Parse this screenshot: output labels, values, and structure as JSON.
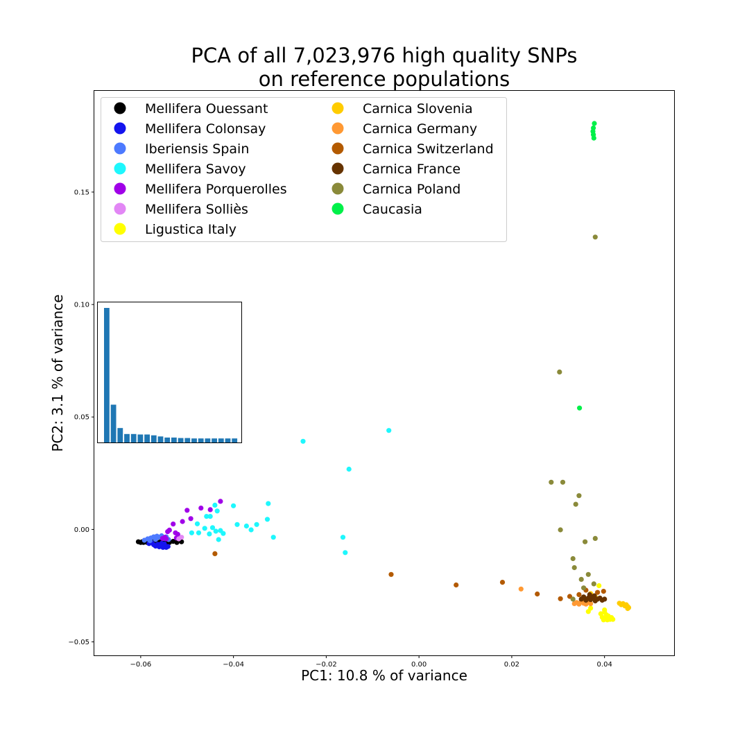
{
  "chart_data": {
    "type": "scatter",
    "title": "PCA of all 7,023,976 high quality SNPs",
    "subtitle": "on reference populations",
    "xlabel": "PC1: 10.8 % of variance",
    "ylabel": "PC2: 3.1 % of variance",
    "xlim": [
      -0.07,
      0.055
    ],
    "ylim": [
      -0.056,
      0.195
    ],
    "x_ticks": [
      -0.06,
      -0.04,
      -0.02,
      0.0,
      0.02,
      0.04
    ],
    "x_tick_labels": [
      "−0.06",
      "−0.04",
      "−0.02",
      "0.00",
      "0.02",
      "0.04"
    ],
    "y_ticks": [
      -0.05,
      0.0,
      0.05,
      0.1,
      0.15
    ],
    "y_tick_labels": [
      "−0.05",
      "0.00",
      "0.05",
      "0.10",
      "0.15"
    ],
    "grid": false,
    "legend_position": "top-left",
    "legend_columns": 2,
    "series": [
      {
        "name": "Mellifera Ouessant",
        "color": "#000000",
        "points": [
          [
            -0.0605,
            -0.0055
          ],
          [
            -0.06,
            -0.0058
          ],
          [
            -0.0597,
            -0.0055
          ],
          [
            -0.0594,
            -0.0058
          ],
          [
            -0.059,
            -0.0055
          ],
          [
            -0.0586,
            -0.0058
          ],
          [
            -0.0582,
            -0.0056
          ],
          [
            -0.0578,
            -0.0058
          ],
          [
            -0.0573,
            -0.0055
          ],
          [
            -0.0568,
            -0.0057
          ],
          [
            -0.0563,
            -0.0058
          ],
          [
            -0.0558,
            -0.0055
          ],
          [
            -0.0553,
            -0.006
          ],
          [
            -0.0545,
            -0.0056
          ],
          [
            -0.0538,
            -0.0058
          ],
          [
            -0.053,
            -0.0053
          ],
          [
            -0.0522,
            -0.0058
          ],
          [
            -0.0512,
            -0.0055
          ]
        ]
      },
      {
        "name": "Mellifera Colonsay",
        "color": "#1414ee",
        "points": [
          [
            -0.0582,
            -0.0063
          ],
          [
            -0.0577,
            -0.0058
          ],
          [
            -0.0572,
            -0.0068
          ],
          [
            -0.0568,
            -0.0074
          ],
          [
            -0.0563,
            -0.0066
          ],
          [
            -0.056,
            -0.0077
          ],
          [
            -0.0556,
            -0.007
          ],
          [
            -0.0552,
            -0.008
          ],
          [
            -0.0548,
            -0.0074
          ],
          [
            -0.0545,
            -0.008
          ],
          [
            -0.0541,
            -0.0076
          ],
          [
            -0.0555,
            -0.0062
          ],
          [
            -0.0549,
            -0.0064
          ]
        ]
      },
      {
        "name": "Iberiensis Spain",
        "color": "#4d7aff",
        "points": [
          [
            -0.0592,
            -0.0048
          ],
          [
            -0.0585,
            -0.0042
          ],
          [
            -0.0578,
            -0.0038
          ],
          [
            -0.0572,
            -0.0033
          ],
          [
            -0.0565,
            -0.003
          ],
          [
            -0.056,
            -0.0035
          ],
          [
            -0.0555,
            -0.0028
          ],
          [
            -0.055,
            -0.004
          ],
          [
            -0.0545,
            -0.0033
          ],
          [
            -0.054,
            -0.0045
          ],
          [
            -0.058,
            -0.005
          ],
          [
            -0.0568,
            -0.0045
          ]
        ]
      },
      {
        "name": "Mellifera Savoy",
        "color": "#1ef7fd",
        "points": [
          [
            -0.049,
            -0.0015
          ],
          [
            -0.0478,
            0.0025
          ],
          [
            -0.0475,
            -0.0015
          ],
          [
            -0.0462,
            0.0005
          ],
          [
            -0.0458,
            0.0058
          ],
          [
            -0.0452,
            -0.002
          ],
          [
            -0.045,
            0.0058
          ],
          [
            -0.0445,
            0.0008
          ],
          [
            -0.044,
            0.0108
          ],
          [
            -0.0438,
            -0.0008
          ],
          [
            -0.0435,
            0.0082
          ],
          [
            -0.0432,
            -0.0045
          ],
          [
            -0.0428,
            -0.0005
          ],
          [
            -0.0422,
            -0.0018
          ],
          [
            -0.04,
            0.0105
          ],
          [
            -0.0392,
            0.0022
          ],
          [
            -0.0372,
            0.0015
          ],
          [
            -0.0362,
            -0.0002
          ],
          [
            -0.035,
            0.0022
          ],
          [
            -0.0327,
            0.0045
          ],
          [
            -0.0325,
            0.0115
          ],
          [
            -0.0314,
            -0.0035
          ],
          [
            -0.025,
            0.0392
          ],
          [
            -0.0164,
            -0.0035
          ],
          [
            -0.0159,
            -0.0103
          ],
          [
            -0.0151,
            0.0268
          ],
          [
            -0.0065,
            0.044
          ]
        ]
      },
      {
        "name": "Mellifera Porquerolles",
        "color": "#a000e8",
        "points": [
          [
            -0.0553,
            -0.004
          ],
          [
            -0.0548,
            -0.0035
          ],
          [
            -0.0545,
            -0.0042
          ],
          [
            -0.0542,
            -0.001
          ],
          [
            -0.0538,
            -0.0003
          ],
          [
            -0.053,
            0.0024
          ],
          [
            -0.0523,
            -0.0038
          ],
          [
            -0.052,
            -0.0022
          ],
          [
            -0.0525,
            -0.0015
          ],
          [
            -0.051,
            0.0035
          ],
          [
            -0.05,
            0.0085
          ],
          [
            -0.0492,
            0.0048
          ],
          [
            -0.047,
            0.0095
          ],
          [
            -0.045,
            0.0088
          ],
          [
            -0.0428,
            0.0125
          ]
        ]
      },
      {
        "name": "Mellifera Solliès",
        "color": "#e287f5",
        "points": [
          [
            -0.0512,
            -0.0035
          ],
          [
            -0.0518,
            -0.0042
          ]
        ]
      },
      {
        "name": "Ligustica Italy",
        "color": "#ffff00",
        "points": [
          [
            0.0365,
            -0.0365
          ],
          [
            0.037,
            -0.035
          ],
          [
            0.0392,
            -0.0375
          ],
          [
            0.0395,
            -0.039
          ],
          [
            0.0398,
            -0.0402
          ],
          [
            0.04,
            -0.0368
          ],
          [
            0.0402,
            -0.0395
          ],
          [
            0.0404,
            -0.038
          ],
          [
            0.0406,
            -0.0402
          ],
          [
            0.0408,
            -0.0385
          ],
          [
            0.041,
            -0.0395
          ],
          [
            0.0412,
            -0.04
          ],
          [
            0.0415,
            -0.0392
          ],
          [
            0.0418,
            -0.04
          ],
          [
            0.04,
            -0.0358
          ],
          [
            0.0388,
            -0.025
          ]
        ]
      },
      {
        "name": "Carnica Slovenia",
        "color": "#ffcc00",
        "points": [
          [
            0.0432,
            -0.0328
          ],
          [
            0.0436,
            -0.0335
          ],
          [
            0.044,
            -0.033
          ],
          [
            0.0444,
            -0.034
          ],
          [
            0.0447,
            -0.0335
          ],
          [
            0.045,
            -0.0343
          ],
          [
            0.0452,
            -0.0348
          ],
          [
            0.045,
            -0.0352
          ],
          [
            0.038,
            -0.03
          ],
          [
            0.037,
            -0.0285
          ]
        ]
      },
      {
        "name": "Carnica Germany",
        "color": "#ff9933",
        "points": [
          [
            0.0335,
            -0.033
          ],
          [
            0.034,
            -0.0325
          ],
          [
            0.0345,
            -0.0332
          ],
          [
            0.035,
            -0.032
          ],
          [
            0.0355,
            -0.0328
          ],
          [
            0.036,
            -0.0332
          ],
          [
            0.0365,
            -0.0322
          ],
          [
            0.037,
            -0.033
          ],
          [
            0.022,
            -0.0265
          ]
        ]
      },
      {
        "name": "Carnica Switzerland",
        "color": "#b35a00",
        "points": [
          [
            -0.044,
            -0.0108
          ],
          [
            -0.006,
            -0.02
          ],
          [
            0.008,
            -0.0247
          ],
          [
            0.018,
            -0.0235
          ],
          [
            0.0255,
            -0.0287
          ],
          [
            0.0305,
            -0.0308
          ],
          [
            0.0325,
            -0.0298
          ],
          [
            0.0345,
            -0.029
          ],
          [
            0.036,
            -0.027
          ],
          [
            0.0372,
            -0.03
          ],
          [
            0.0385,
            -0.028
          ],
          [
            0.0398,
            -0.0275
          ]
        ]
      },
      {
        "name": "Carnica France",
        "color": "#663300",
        "points": [
          [
            0.035,
            -0.031
          ],
          [
            0.0355,
            -0.03
          ],
          [
            0.036,
            -0.0315
          ],
          [
            0.0365,
            -0.0305
          ],
          [
            0.037,
            -0.0312
          ],
          [
            0.0375,
            -0.0302
          ],
          [
            0.038,
            -0.0318
          ],
          [
            0.0385,
            -0.031
          ],
          [
            0.039,
            -0.0305
          ],
          [
            0.0395,
            -0.0315
          ],
          [
            0.04,
            -0.031
          ],
          [
            0.0368,
            -0.029
          ],
          [
            0.0378,
            -0.0295
          ]
        ]
      },
      {
        "name": "Carnica Poland",
        "color": "#8a8a3a",
        "points": [
          [
            0.038,
            0.13
          ],
          [
            0.0303,
            0.07
          ],
          [
            0.0285,
            0.021
          ],
          [
            0.031,
            0.021
          ],
          [
            0.0345,
            0.015
          ],
          [
            0.0338,
            0.0112
          ],
          [
            0.0305,
            -0.0002
          ],
          [
            0.038,
            -0.004
          ],
          [
            0.0358,
            -0.0055
          ],
          [
            0.0332,
            -0.013
          ],
          [
            0.0335,
            -0.017
          ],
          [
            0.0365,
            -0.02
          ],
          [
            0.035,
            -0.0222
          ],
          [
            0.0377,
            -0.0242
          ],
          [
            0.0355,
            -0.026
          ],
          [
            0.0332,
            -0.031
          ]
        ]
      },
      {
        "name": "Caucasia",
        "color": "#00f049",
        "points": [
          [
            0.0378,
            0.1805
          ],
          [
            0.0376,
            0.1785
          ],
          [
            0.0375,
            0.177
          ],
          [
            0.0376,
            0.1755
          ],
          [
            0.0377,
            0.174
          ],
          [
            0.0346,
            0.054
          ]
        ]
      }
    ],
    "inset": {
      "type": "bar",
      "values": [
        0.0985,
        0.055,
        0.0445,
        0.0418,
        0.0418,
        0.0416,
        0.0416,
        0.0412,
        0.0407,
        0.0402,
        0.0402,
        0.04,
        0.04,
        0.0398,
        0.0398,
        0.0398,
        0.0398,
        0.0398,
        0.0398,
        0.0398
      ],
      "ylim": [
        0.038,
        0.101
      ],
      "color": "#1f77b4"
    }
  }
}
